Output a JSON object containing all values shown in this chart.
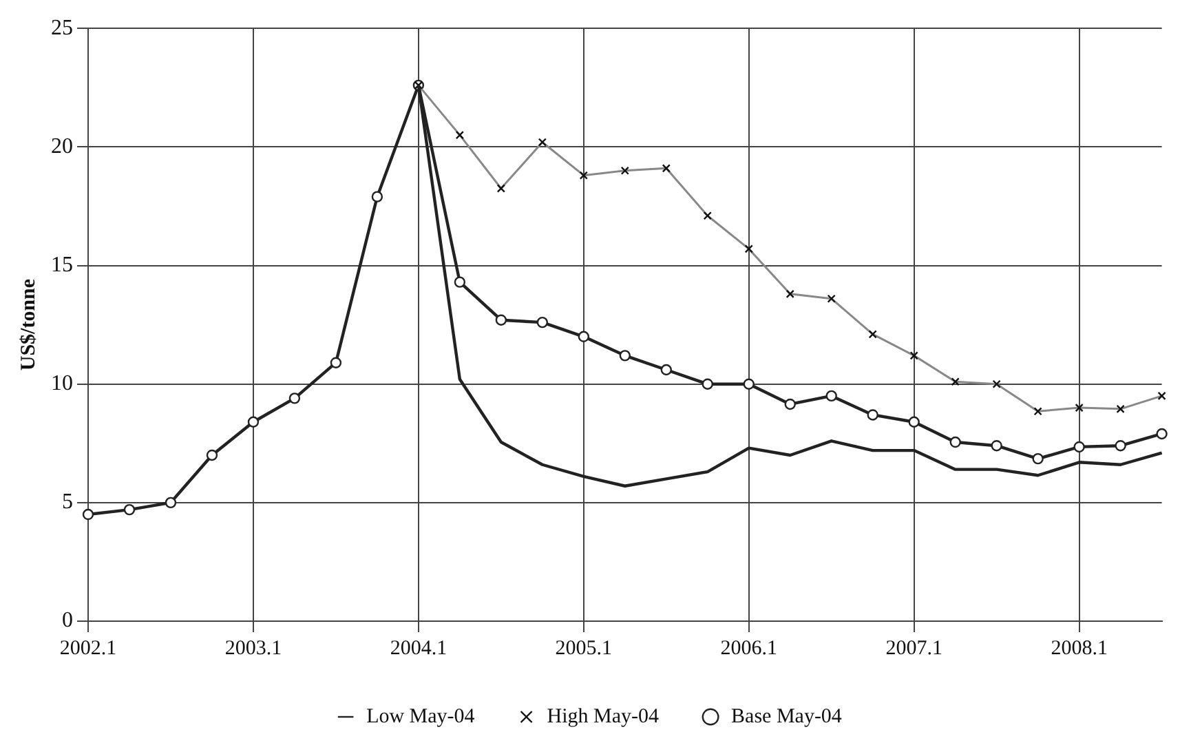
{
  "chart_data": {
    "type": "line",
    "ylabel": "US$/tonne",
    "categories": [
      "2002.1",
      null,
      null,
      null,
      "2003.1",
      null,
      null,
      null,
      "2004.1",
      null,
      null,
      null,
      "2005.1",
      null,
      null,
      null,
      "2006.1",
      null,
      null,
      null,
      "2007.1",
      null,
      null,
      null,
      "2008.1",
      null,
      null
    ],
    "series": [
      {
        "name": "Low May-04",
        "color": "#222222",
        "marker": "none",
        "values": [
          null,
          null,
          null,
          null,
          null,
          null,
          null,
          null,
          22.6,
          10.2,
          7.55,
          6.6,
          6.1,
          5.7,
          6.0,
          6.3,
          7.3,
          7.0,
          7.6,
          7.2,
          7.2,
          6.4,
          6.4,
          6.15,
          6.7,
          6.6,
          7.1
        ]
      },
      {
        "name": "High May-04",
        "color": "#888888",
        "marker": "cross",
        "values": [
          null,
          null,
          null,
          null,
          null,
          null,
          null,
          null,
          22.6,
          20.5,
          18.25,
          20.2,
          18.8,
          19.0,
          19.1,
          17.1,
          15.7,
          13.8,
          13.6,
          12.1,
          11.2,
          10.1,
          10.0,
          8.85,
          9.0,
          8.95,
          9.5
        ]
      },
      {
        "name": "Base May-04",
        "color": "#222222",
        "marker": "circle",
        "values": [
          4.5,
          4.7,
          5.0,
          7.0,
          8.4,
          9.4,
          10.9,
          17.9,
          22.6,
          14.3,
          12.7,
          12.6,
          12.0,
          11.2,
          10.6,
          10.0,
          10.0,
          9.15,
          9.5,
          8.7,
          8.4,
          7.55,
          7.4,
          6.85,
          7.35,
          7.4,
          7.9
        ]
      }
    ],
    "ylim": [
      0,
      25
    ],
    "yticks": [
      0,
      5,
      10,
      15,
      20,
      25
    ],
    "grid": true,
    "legend": "bottom"
  }
}
